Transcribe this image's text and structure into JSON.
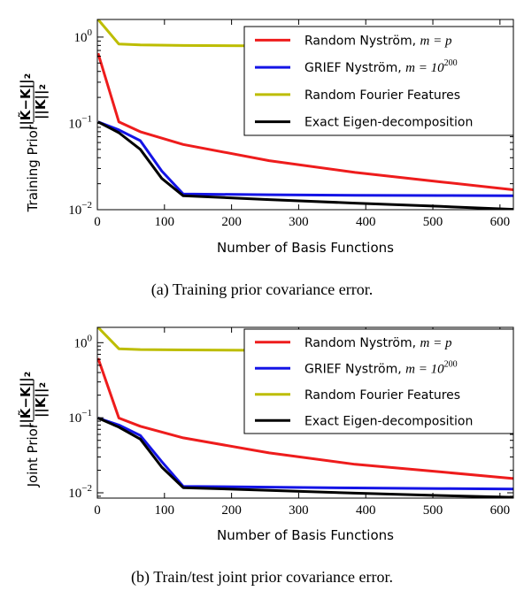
{
  "chart_data": [
    {
      "type": "line",
      "panel": "a",
      "caption": "(a) Training prior covariance error.",
      "title": "",
      "xlabel": "Number of Basis Functions",
      "ylabel": "Training Prior",
      "ylabel_fraction": {
        "numerator": "||K̃−K||₂",
        "denominator": "||K||₂"
      },
      "xlim": [
        0,
        620
      ],
      "ylim": [
        0.01,
        1.6
      ],
      "yscale": "log",
      "xticks": [
        0,
        100,
        200,
        300,
        400,
        500,
        600
      ],
      "yticks": [
        {
          "value": 1,
          "base": "10",
          "exp": "0"
        },
        {
          "value": 0.1,
          "base": "10",
          "exp": "−1"
        },
        {
          "value": 0.01,
          "base": "10",
          "exp": "−2"
        }
      ],
      "grid": false,
      "legend_position": "top-right",
      "series": [
        {
          "name": "Random Nyström, ",
          "math": "m = p",
          "sup": "",
          "color": "#ee1c1c",
          "x": [
            1,
            32,
            64,
            128,
            256,
            384,
            512,
            620
          ],
          "y": [
            0.65,
            0.104,
            0.08,
            0.057,
            0.037,
            0.027,
            0.021,
            0.017
          ]
        },
        {
          "name": "GRIEF Nyström, ",
          "math": "m = 10",
          "sup": "200",
          "color": "#1414e6",
          "x": [
            1,
            32,
            64,
            96,
            128,
            256,
            384,
            512,
            620
          ],
          "y": [
            0.104,
            0.084,
            0.063,
            0.028,
            0.0152,
            0.0149,
            0.0147,
            0.0146,
            0.0145
          ]
        },
        {
          "name": "Random Fourier Features",
          "math": "",
          "sup": "",
          "color": "#bdbd00",
          "x": [
            1,
            32,
            64,
            128,
            256,
            384,
            512,
            620
          ],
          "y": [
            1.6,
            0.83,
            0.81,
            0.8,
            0.79,
            0.79,
            0.79,
            0.79
          ]
        },
        {
          "name": "Exact Eigen-decomposition",
          "math": "",
          "sup": "",
          "color": "#000000",
          "x": [
            1,
            32,
            64,
            96,
            128,
            256,
            384,
            512,
            620
          ],
          "y": [
            0.104,
            0.078,
            0.05,
            0.023,
            0.0145,
            0.0131,
            0.0119,
            0.0109,
            0.0101
          ]
        }
      ]
    },
    {
      "type": "line",
      "panel": "b",
      "caption": "(b) Train/test joint prior covariance error.",
      "title": "",
      "xlabel": "Number of Basis Functions",
      "ylabel": "Joint Prior",
      "ylabel_fraction": {
        "numerator": "||K̃−K||₂",
        "denominator": "||K||₂"
      },
      "xlim": [
        0,
        620
      ],
      "ylim": [
        0.0085,
        1.6
      ],
      "yscale": "log",
      "xticks": [
        0,
        100,
        200,
        300,
        400,
        500,
        600
      ],
      "yticks": [
        {
          "value": 1,
          "base": "10",
          "exp": "0"
        },
        {
          "value": 0.1,
          "base": "10",
          "exp": "−1"
        },
        {
          "value": 0.01,
          "base": "10",
          "exp": "−2"
        }
      ],
      "grid": false,
      "legend_position": "top-right",
      "series": [
        {
          "name": "Random Nyström, ",
          "math": "m = p",
          "sup": "",
          "color": "#ee1c1c",
          "x": [
            1,
            32,
            64,
            128,
            256,
            384,
            512,
            620
          ],
          "y": [
            0.62,
            0.099,
            0.077,
            0.054,
            0.034,
            0.024,
            0.019,
            0.0155
          ]
        },
        {
          "name": "GRIEF Nyström, ",
          "math": "m = 10",
          "sup": "200",
          "color": "#1414e6",
          "x": [
            1,
            32,
            64,
            96,
            128,
            256,
            384,
            512,
            620
          ],
          "y": [
            0.099,
            0.08,
            0.058,
            0.026,
            0.0122,
            0.0119,
            0.0116,
            0.0114,
            0.0112
          ]
        },
        {
          "name": "Random Fourier Features",
          "math": "",
          "sup": "",
          "color": "#bdbd00",
          "x": [
            1,
            32,
            64,
            128,
            256,
            384,
            512,
            620
          ],
          "y": [
            1.6,
            0.83,
            0.81,
            0.8,
            0.79,
            0.79,
            0.79,
            0.79
          ]
        },
        {
          "name": "Exact Eigen-decomposition",
          "math": "",
          "sup": "",
          "color": "#000000",
          "x": [
            1,
            32,
            64,
            96,
            128,
            256,
            384,
            512,
            620
          ],
          "y": [
            0.099,
            0.075,
            0.052,
            0.022,
            0.0117,
            0.0108,
            0.0099,
            0.0092,
            0.0087
          ]
        }
      ]
    }
  ]
}
